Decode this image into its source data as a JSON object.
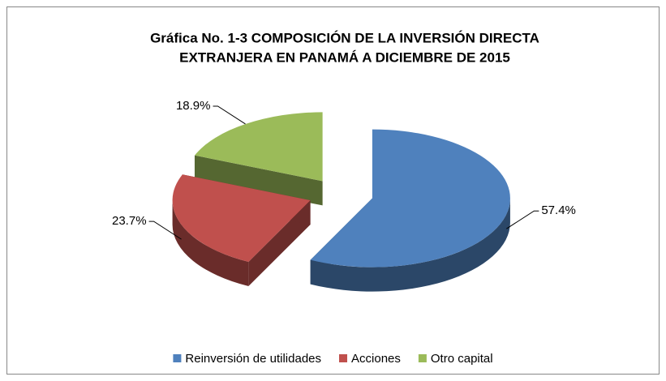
{
  "chart_data": {
    "type": "pie",
    "title": [
      "Gráfica No. 1-3 COMPOSICIÓN DE LA INVERSIÓN DIRECTA",
      "EXTRANJERA  EN PANAMÁ A DICIEMBRE DE 2015"
    ],
    "categories": [
      "Reinversión de utilidades",
      "Acciones",
      "Otro capital"
    ],
    "values": [
      57.4,
      23.7,
      18.9
    ],
    "value_labels": [
      "57.4%",
      "23.7%",
      "18.9%"
    ],
    "colors": [
      "#4f81bd",
      "#c0504d",
      "#9bbb59"
    ],
    "legend": "bottom"
  }
}
